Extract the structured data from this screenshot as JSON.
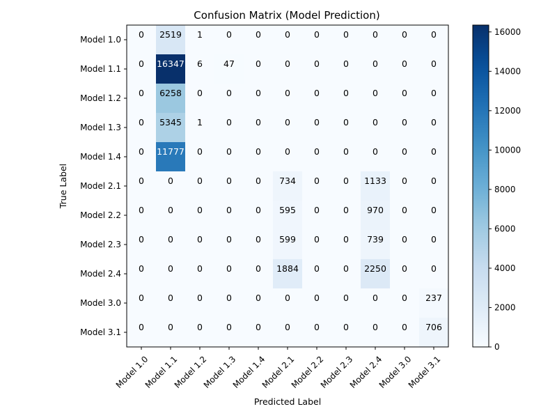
{
  "chart_data": {
    "type": "heatmap",
    "title": "Confusion Matrix (Model Prediction)",
    "xlabel": "Predicted Label",
    "ylabel": "True Label",
    "x_categories": [
      "Model 1.0",
      "Model 1.1",
      "Model 1.2",
      "Model 1.3",
      "Model 1.4",
      "Model 2.1",
      "Model 2.2",
      "Model 2.3",
      "Model 2.4",
      "Model 3.0",
      "Model 3.1"
    ],
    "y_categories": [
      "Model 1.0",
      "Model 1.1",
      "Model 1.2",
      "Model 1.3",
      "Model 1.4",
      "Model 2.1",
      "Model 2.2",
      "Model 2.3",
      "Model 2.4",
      "Model 3.0",
      "Model 3.1"
    ],
    "values": [
      [
        0,
        2519,
        1,
        0,
        0,
        0,
        0,
        0,
        0,
        0,
        0
      ],
      [
        0,
        16347,
        6,
        47,
        0,
        0,
        0,
        0,
        0,
        0,
        0
      ],
      [
        0,
        6258,
        0,
        0,
        0,
        0,
        0,
        0,
        0,
        0,
        0
      ],
      [
        0,
        5345,
        1,
        0,
        0,
        0,
        0,
        0,
        0,
        0,
        0
      ],
      [
        0,
        11777,
        0,
        0,
        0,
        0,
        0,
        0,
        0,
        0,
        0
      ],
      [
        0,
        0,
        0,
        0,
        0,
        734,
        0,
        0,
        1133,
        0,
        0
      ],
      [
        0,
        0,
        0,
        0,
        0,
        595,
        0,
        0,
        970,
        0,
        0
      ],
      [
        0,
        0,
        0,
        0,
        0,
        599,
        0,
        0,
        739,
        0,
        0
      ],
      [
        0,
        0,
        0,
        0,
        0,
        1884,
        0,
        0,
        2250,
        0,
        0
      ],
      [
        0,
        0,
        0,
        0,
        0,
        0,
        0,
        0,
        0,
        0,
        237
      ],
      [
        0,
        0,
        0,
        0,
        0,
        0,
        0,
        0,
        0,
        0,
        706
      ]
    ],
    "colormap": "Blues",
    "colorbar": {
      "range": [
        0,
        16347
      ],
      "ticks": [
        0,
        2000,
        4000,
        6000,
        8000,
        10000,
        12000,
        14000,
        16000
      ]
    },
    "grid": false,
    "legend": "none"
  }
}
